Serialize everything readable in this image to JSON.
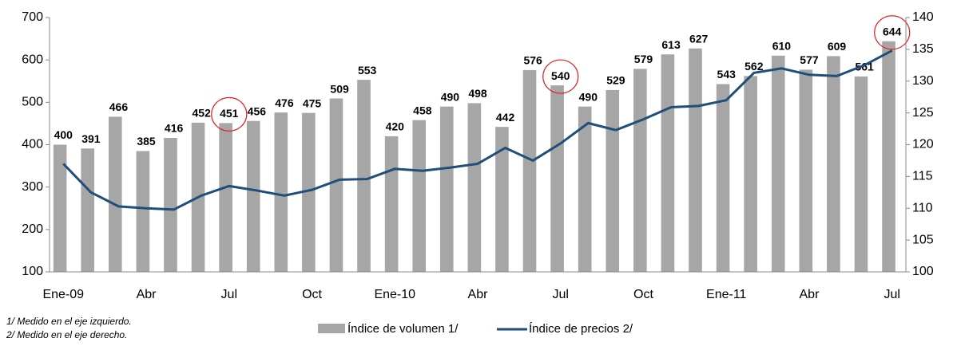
{
  "chart_data": {
    "type": "bar_line",
    "categories": [
      "Ene-09",
      null,
      null,
      "Abr",
      null,
      null,
      "Jul",
      null,
      null,
      "Oct",
      null,
      null,
      "Ene-10",
      null,
      null,
      "Abr",
      null,
      null,
      "Jul",
      null,
      null,
      "Oct",
      null,
      null,
      "Ene-11",
      null,
      null,
      "Abr",
      null,
      null,
      "Jul"
    ],
    "series": [
      {
        "name": "Índice de volumen 1/",
        "type": "bar",
        "color": "#a6a6a6",
        "axis": "y",
        "values": [
          400,
          391,
          466,
          385,
          416,
          452,
          451,
          456,
          476,
          475,
          509,
          553,
          420,
          458,
          490,
          498,
          442,
          576,
          540,
          490,
          529,
          579,
          613,
          627,
          543,
          562,
          610,
          577,
          609,
          561,
          644
        ]
      },
      {
        "name": "Índice de precios 2/",
        "type": "line",
        "color": "#1f4e7a",
        "axis": "y2",
        "values": [
          117,
          112.5,
          110.3,
          110,
          109.8,
          112,
          113.5,
          112.8,
          112,
          112.9,
          114.5,
          114.6,
          116.2,
          115.9,
          116.4,
          117,
          119.5,
          117.5,
          120.2,
          123.4,
          122.3,
          124,
          125.9,
          126.1,
          127,
          131.3,
          132,
          131,
          130.8,
          132.5,
          134.8
        ]
      }
    ],
    "ylim": [
      100,
      700
    ],
    "yticks": [
      100,
      200,
      300,
      400,
      500,
      600,
      700
    ],
    "y2lim": [
      100,
      140
    ],
    "y2ticks": [
      100,
      105,
      110,
      115,
      120,
      125,
      130,
      135,
      140
    ],
    "circled": [
      6,
      18,
      30
    ],
    "circle_color": "#e02020",
    "footnotes": [
      "1/ Medido en el eje izquierdo.",
      "2/ Medido en el eje derecho."
    ]
  }
}
